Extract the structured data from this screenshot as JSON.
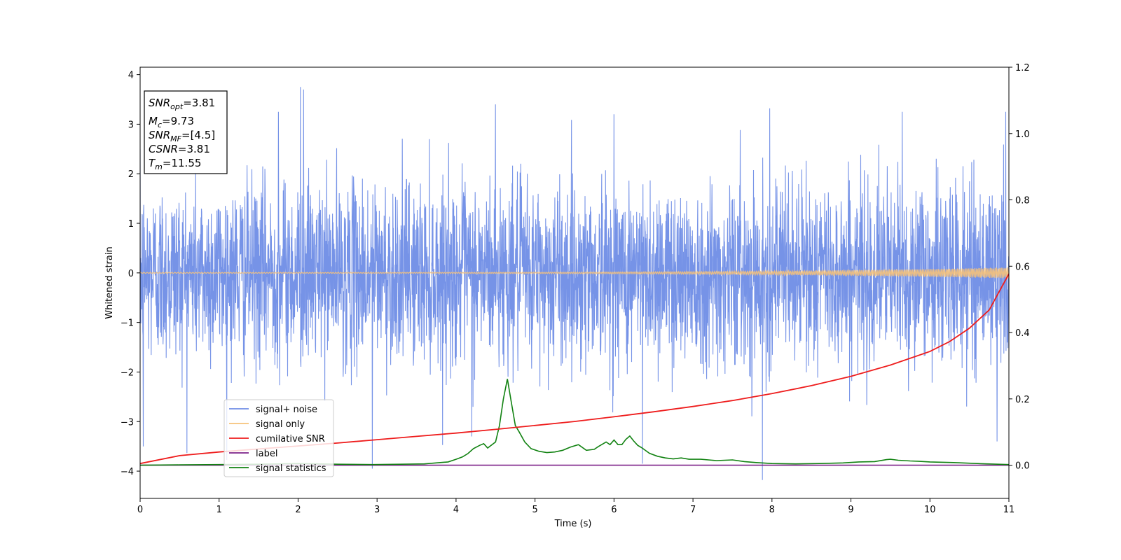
{
  "chart_data": {
    "type": "line",
    "xlabel": "Time (s)",
    "ylabel": "Whitened strain",
    "xlim": [
      0,
      11
    ],
    "ylim": [
      -4.55,
      4.15
    ],
    "y2lim": [
      -0.1,
      1.2
    ],
    "x_ticks": [
      "0",
      "1",
      "2",
      "3",
      "4",
      "5",
      "6",
      "7",
      "8",
      "9",
      "10",
      "11"
    ],
    "y_ticks": [
      "−4",
      "−3",
      "−2",
      "−1",
      "0",
      "1",
      "2",
      "3",
      "4"
    ],
    "y2_ticks": [
      "0.0",
      "0.2",
      "0.4",
      "0.6",
      "0.8",
      "1.0",
      "1.2"
    ],
    "grid": false,
    "legend_position": "lower-left",
    "info_box": {
      "snr_opt": {
        "sym": "SNR",
        "sub": "opt",
        "val": "=3.81"
      },
      "mc": {
        "sym": "M",
        "sub": "c",
        "val": "=9.73"
      },
      "snr_mf": {
        "sym": "SNR",
        "sub": "MF",
        "val": "=[4.5]"
      },
      "csnr": {
        "sym": "CSNR",
        "val": "=3.81"
      },
      "tm": {
        "sym": "T",
        "sub": "m",
        "val": "=11.55"
      }
    },
    "series": [
      {
        "name": "signal+ noise",
        "axis": "left",
        "color": "#6f8de6",
        "description_values": {
          "baseline_sigma": 0.9,
          "peak_max": 3.75,
          "peak_min": -4.18
        },
        "spikes": [
          {
            "x": 2.03,
            "y": 3.75
          },
          {
            "x": 2.07,
            "y": 3.7
          },
          {
            "x": 4.5,
            "y": 3.4
          },
          {
            "x": 7.97,
            "y": 3.32
          },
          {
            "x": 9.65,
            "y": 3.25
          },
          {
            "x": 10.96,
            "y": 3.25
          },
          {
            "x": 1.75,
            "y": 3.25
          },
          {
            "x": 6.0,
            "y": 3.2
          },
          {
            "x": 7.88,
            "y": -4.18
          },
          {
            "x": 2.94,
            "y": -3.95
          },
          {
            "x": 6.36,
            "y": -3.85
          },
          {
            "x": 0.04,
            "y": -3.5
          },
          {
            "x": 10.85,
            "y": -3.4
          },
          {
            "x": 4.2,
            "y": -3.3
          }
        ]
      },
      {
        "name": "signal only",
        "axis": "left",
        "color": "#f6c27a",
        "description_values": {
          "amplitude_start": 0.01,
          "amplitude_end": 0.11
        }
      },
      {
        "name": "cumilative SNR",
        "axis": "right",
        "color": "#ee1c1c",
        "x": [
          0,
          0.5,
          1,
          1.5,
          2,
          2.5,
          3,
          3.5,
          4,
          4.5,
          5,
          5.5,
          6,
          6.5,
          7,
          7.5,
          8,
          8.5,
          9,
          9.5,
          10,
          10.25,
          10.5,
          10.75,
          11
        ],
        "y": [
          0.005,
          0.029,
          0.04,
          0.049,
          0.058,
          0.067,
          0.077,
          0.087,
          0.097,
          0.108,
          0.12,
          0.132,
          0.146,
          0.161,
          0.177,
          0.195,
          0.216,
          0.24,
          0.268,
          0.302,
          0.343,
          0.373,
          0.413,
          0.468,
          0.577
        ]
      },
      {
        "name": "label",
        "axis": "right",
        "color": "#7b2088",
        "x": [
          0,
          11
        ],
        "y": [
          0.0,
          0.0
        ]
      },
      {
        "name": "signal statistics",
        "axis": "right",
        "color": "#118211",
        "x": [
          0,
          0.5,
          1,
          1.5,
          2,
          2.5,
          2.95,
          3.3,
          3.6,
          3.9,
          4.0,
          4.08,
          4.15,
          4.22,
          4.3,
          4.35,
          4.4,
          4.5,
          4.55,
          4.6,
          4.65,
          4.7,
          4.75,
          4.8,
          4.87,
          4.95,
          5.05,
          5.15,
          5.25,
          5.35,
          5.45,
          5.55,
          5.65,
          5.75,
          5.8,
          5.9,
          5.95,
          6.0,
          6.05,
          6.1,
          6.15,
          6.2,
          6.25,
          6.3,
          6.35,
          6.45,
          6.55,
          6.65,
          6.75,
          6.85,
          6.95,
          7.1,
          7.3,
          7.5,
          7.65,
          7.8,
          8.0,
          8.3,
          8.6,
          8.9,
          9.1,
          9.3,
          9.45,
          9.5,
          9.6,
          9.75,
          9.85,
          10.0,
          10.3,
          10.6,
          11.0
        ],
        "y": [
          0.0,
          0.001,
          0.002,
          0.003,
          0.005,
          0.003,
          0.002,
          0.003,
          0.004,
          0.01,
          0.018,
          0.025,
          0.035,
          0.05,
          0.06,
          0.065,
          0.052,
          0.07,
          0.12,
          0.2,
          0.26,
          0.19,
          0.12,
          0.1,
          0.07,
          0.05,
          0.042,
          0.038,
          0.04,
          0.045,
          0.055,
          0.062,
          0.045,
          0.048,
          0.056,
          0.07,
          0.062,
          0.076,
          0.062,
          0.062,
          0.078,
          0.088,
          0.073,
          0.06,
          0.053,
          0.036,
          0.027,
          0.022,
          0.019,
          0.022,
          0.018,
          0.018,
          0.014,
          0.016,
          0.011,
          0.008,
          0.005,
          0.004,
          0.005,
          0.007,
          0.01,
          0.011,
          0.017,
          0.018,
          0.015,
          0.013,
          0.012,
          0.01,
          0.008,
          0.005,
          0.002
        ]
      }
    ]
  }
}
